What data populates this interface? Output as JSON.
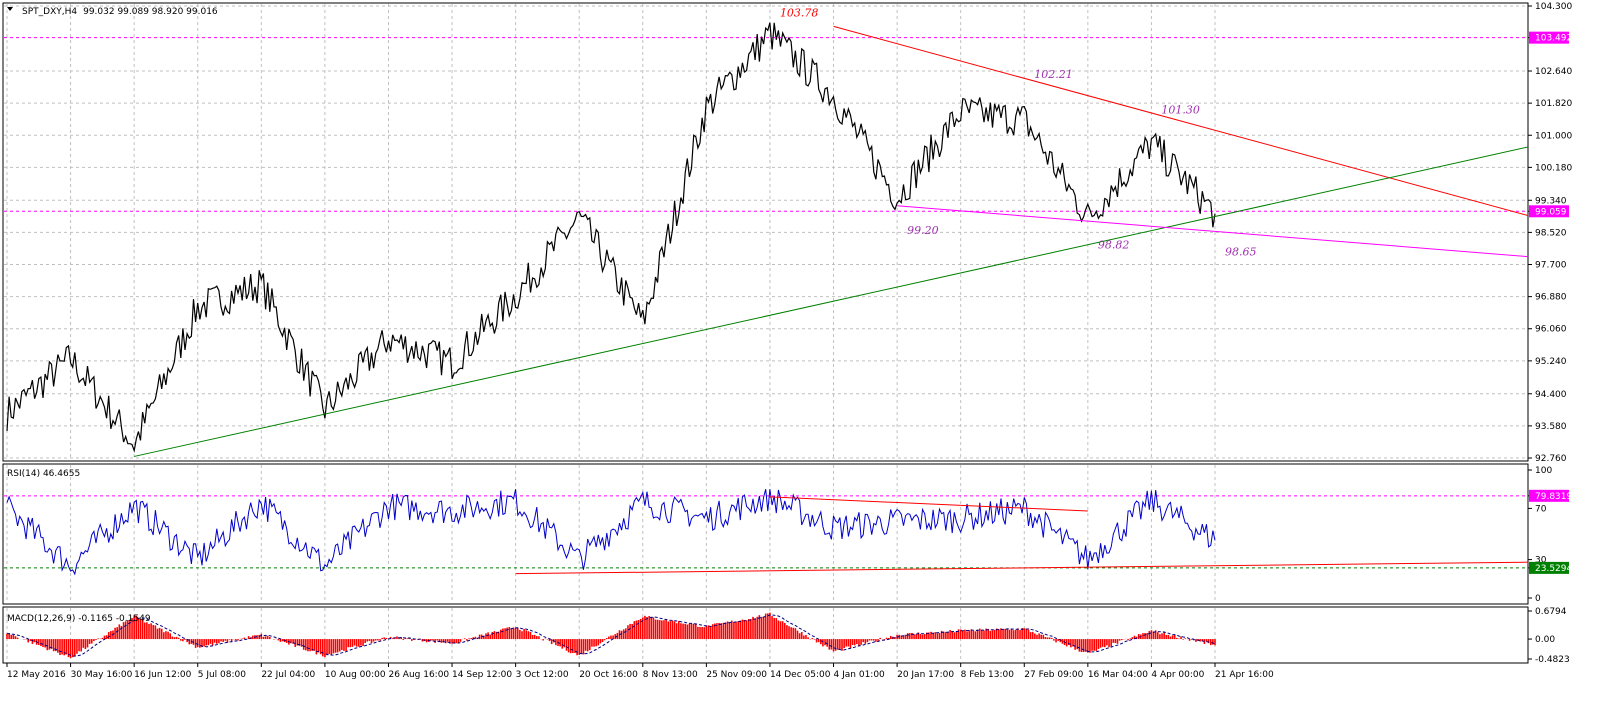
{
  "chart_data": [
    {
      "type": "line",
      "name": "price",
      "title": "SPT_DXY,H4",
      "ohlc_readout": "99.032 99.089 98.920 99.016",
      "ylim": [
        92.76,
        104.3
      ],
      "yticks": [
        "104.300",
        "103.492",
        "102.640",
        "101.820",
        "101.000",
        "100.180",
        "99.340",
        "99.059",
        "98.520",
        "97.700",
        "96.880",
        "96.060",
        "95.240",
        "94.400",
        "93.580",
        "92.760"
      ],
      "highlighted_ticks": {
        "103.492": "#ff00ff",
        "99.059": "#ff00ff"
      },
      "horizontal_levels": [
        {
          "value": 103.492,
          "color": "#ff00ff"
        },
        {
          "value": 99.059,
          "color": "#ff00ff"
        }
      ],
      "x": [
        "12 May 2016",
        "30 May 16:00",
        "16 Jun 12:00",
        "5 Jul 08:00",
        "22 Jul 04:00",
        "10 Aug 00:00",
        "26 Aug 16:00",
        "14 Sep 12:00",
        "3 Oct 12:00",
        "20 Oct 16:00",
        "8 Nov 13:00",
        "25 Nov 09:00",
        "14 Dec 05:00",
        "4 Jan 01:00",
        "20 Jan 17:00",
        "8 Feb 13:00",
        "27 Feb 09:00",
        "16 Mar 04:00",
        "4 Apr 00:00",
        "21 Apr 16:00"
      ],
      "close_approx": [
        93.9,
        95.3,
        93.1,
        96.6,
        97.2,
        94.0,
        95.8,
        95.2,
        96.9,
        98.9,
        96.2,
        101.7,
        103.6,
        102.0,
        99.4,
        101.6,
        101.4,
        98.9,
        100.8,
        99.0
      ],
      "trendlines": [
        {
          "name": "resistance",
          "color": "#ff0000",
          "from": [
            "4 Jan 01:00",
            103.78
          ],
          "to": [
            "axis",
            98.95
          ]
        },
        {
          "name": "support",
          "color": "#008000",
          "from": [
            "16 Jun 12:00",
            92.8
          ],
          "to": [
            "axis",
            100.7
          ]
        },
        {
          "name": "lower",
          "color": "#ff00ff",
          "from": [
            "20 Jan 17:00",
            99.2
          ],
          "to": [
            "axis",
            97.9
          ]
        }
      ],
      "annotations": [
        {
          "text": "103.78",
          "color": "#ff0000",
          "at": [
            "14 Dec 05:00",
            103.78
          ]
        },
        {
          "text": "102.21",
          "color": "#a030b0",
          "at": [
            "27 Feb 09:00",
            102.21
          ]
        },
        {
          "text": "101.30",
          "color": "#a030b0",
          "at": [
            "4 Apr 00:00",
            101.3
          ]
        },
        {
          "text": "99.20",
          "color": "#a030b0",
          "at": [
            "20 Jan 17:00",
            99.2
          ]
        },
        {
          "text": "98.82",
          "color": "#a030b0",
          "at": [
            "16 Mar 04:00",
            98.82
          ]
        },
        {
          "text": "98.65",
          "color": "#a030b0",
          "at": [
            "21 Apr 16:00",
            98.65
          ]
        }
      ],
      "series_color": "#000000",
      "grid": true
    },
    {
      "type": "line",
      "name": "rsi",
      "title": "RSI(14) 46.4655",
      "ylim": [
        0,
        100
      ],
      "yticks": [
        "100",
        "79.8319",
        "70",
        "30",
        "23.5294",
        "0"
      ],
      "highlighted_ticks": {
        "79.8319": "#ff00ff",
        "23.5294": "#008000"
      },
      "levels": [
        {
          "value": 79.8319,
          "color": "#ff00ff"
        },
        {
          "value": 23.5294,
          "color": "#008000"
        }
      ],
      "values": [
        70,
        25,
        72,
        30,
        75,
        25,
        72,
        68,
        76,
        30,
        75,
        62,
        79,
        55,
        60,
        62,
        70,
        30,
        76,
        45
      ],
      "trendlines": [
        {
          "color": "#ff0000",
          "from": [
            "14 Dec 05:00",
            79
          ],
          "to": [
            "16 Mar 04:00",
            68
          ]
        },
        {
          "color": "#ff0000",
          "from": [
            "3 Oct 12:00",
            19
          ],
          "to": [
            "axis",
            28
          ]
        }
      ],
      "series_color": "#0000cc"
    },
    {
      "type": "bar",
      "name": "macd",
      "title": "MACD(12,26,9) -0.1165 -0.1549",
      "ylim": [
        -0.4823,
        0.6794
      ],
      "yticks": [
        "0.6794",
        "0.00",
        "-0.4823"
      ],
      "histogram_color": "#ff0000",
      "signal_color": "#000080",
      "values": [
        0.15,
        -0.45,
        0.55,
        -0.2,
        0.1,
        -0.4,
        0.05,
        -0.1,
        0.3,
        -0.4,
        0.55,
        0.3,
        0.6,
        -0.3,
        0.1,
        0.2,
        0.25,
        -0.35,
        0.2,
        -0.15
      ]
    }
  ]
}
